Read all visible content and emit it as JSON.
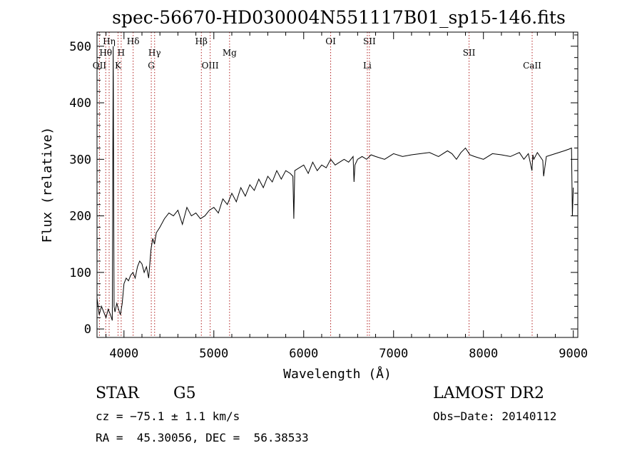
{
  "chart_data": {
    "type": "line",
    "title": "spec-56670-HD030004N551117B01_sp15-146.fits",
    "xlabel": "Wavelength (Å)",
    "ylabel": "Flux (relative)",
    "xlim": [
      3700,
      9050
    ],
    "ylim": [
      -15,
      525
    ],
    "x_ticks": [
      4000,
      5000,
      6000,
      7000,
      8000,
      9000
    ],
    "y_ticks": [
      0,
      100,
      200,
      300,
      400,
      500
    ],
    "grid": false,
    "legend": "none",
    "line_color": "#000000",
    "marker_color": "#b22222",
    "lines": [
      {
        "label": "Hη",
        "wavelength": 3835,
        "row": 1
      },
      {
        "label": "Hθ",
        "wavelength": 3797,
        "row": 2
      },
      {
        "label": "OII",
        "wavelength": 3727,
        "row": 3
      },
      {
        "label": "H",
        "wavelength": 3969,
        "row": 2
      },
      {
        "label": "K",
        "wavelength": 3934,
        "row": 3
      },
      {
        "label": "Hδ",
        "wavelength": 4102,
        "row": 1
      },
      {
        "label": "Hγ",
        "wavelength": 4341,
        "row": 2
      },
      {
        "label": "G",
        "wavelength": 4304,
        "row": 3
      },
      {
        "label": "Hβ",
        "wavelength": 4861,
        "row": 1
      },
      {
        "label": "OIII",
        "wavelength": 4959,
        "row": 3
      },
      {
        "label": "Mg",
        "wavelength": 5175,
        "row": 2
      },
      {
        "label": "OI",
        "wavelength": 6300,
        "row": 1
      },
      {
        "label": "SII",
        "wavelength": 6731,
        "row": 1
      },
      {
        "label": "Li",
        "wavelength": 6708,
        "row": 3
      },
      {
        "label": "SII",
        "wavelength": 7840,
        "row": 2
      },
      {
        "label": "CaII",
        "wavelength": 8542,
        "row": 3
      }
    ],
    "series": [
      {
        "x": [
          3700,
          3725,
          3750,
          3775,
          3800,
          3825,
          3850,
          3870,
          3880,
          3890,
          3900,
          3920,
          3940,
          3960,
          3980,
          4000,
          4025,
          4050,
          4075,
          4100,
          4125,
          4150,
          4175,
          4200,
          4225,
          4250,
          4275,
          4300,
          4320,
          4340,
          4360,
          4380,
          4400,
          4450,
          4500,
          4550,
          4600,
          4650,
          4700,
          4750,
          4800,
          4850,
          4900,
          4950,
          5000,
          5050,
          5100,
          5150,
          5200,
          5250,
          5300,
          5350,
          5400,
          5450,
          5500,
          5550,
          5600,
          5650,
          5700,
          5750,
          5800,
          5850,
          5880,
          5890,
          5900,
          5950,
          6000,
          6050,
          6100,
          6150,
          6200,
          6250,
          6300,
          6350,
          6400,
          6450,
          6500,
          6550,
          6560,
          6570,
          6600,
          6650,
          6700,
          6750,
          6800,
          6900,
          7000,
          7100,
          7200,
          7300,
          7400,
          7500,
          7600,
          7650,
          7700,
          7750,
          7800,
          7850,
          7900,
          8000,
          8100,
          8200,
          8300,
          8400,
          8450,
          8500,
          8540,
          8550,
          8560,
          8600,
          8660,
          8670,
          8700,
          8800,
          8900,
          8950,
          8980,
          8990,
          9000
        ],
        "y": [
          55,
          25,
          40,
          30,
          20,
          35,
          25,
          15,
          500,
          40,
          30,
          45,
          35,
          25,
          45,
          80,
          90,
          85,
          95,
          100,
          90,
          110,
          120,
          115,
          100,
          110,
          90,
          140,
          160,
          150,
          170,
          175,
          180,
          195,
          205,
          200,
          210,
          185,
          215,
          200,
          205,
          195,
          200,
          210,
          215,
          205,
          230,
          220,
          240,
          225,
          250,
          235,
          255,
          245,
          265,
          250,
          270,
          260,
          280,
          265,
          280,
          275,
          270,
          195,
          280,
          285,
          290,
          275,
          295,
          280,
          290,
          285,
          300,
          290,
          295,
          300,
          295,
          305,
          260,
          290,
          300,
          305,
          300,
          308,
          305,
          300,
          310,
          305,
          308,
          310,
          312,
          305,
          315,
          310,
          300,
          312,
          320,
          308,
          305,
          300,
          310,
          308,
          305,
          312,
          300,
          310,
          280,
          308,
          300,
          312,
          298,
          270,
          305,
          310,
          315,
          318,
          320,
          200,
          250
        ]
      }
    ]
  },
  "info": {
    "class_label": "STAR",
    "subclass": "G5",
    "survey": "LAMOST DR2",
    "cz": "cz = −75.1 ± 1.1 km/s",
    "obs_date": "Obs−Date: 20140112",
    "coords": "RA =  45.30056, DEC =  56.38533"
  }
}
